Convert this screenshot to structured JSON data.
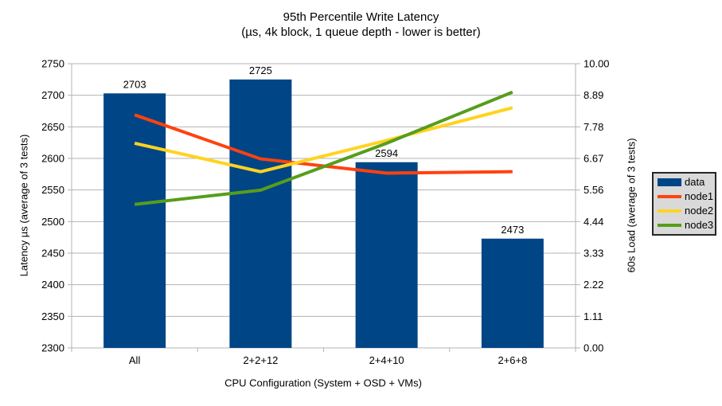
{
  "title": "95th Percentile Write Latency",
  "subtitle": "(µs, 4k block, 1 queue depth - lower is better)",
  "chart_data": {
    "type": "bar",
    "categories": [
      "All",
      "2+2+12",
      "2+4+10",
      "2+6+8"
    ],
    "bar_series": {
      "name": "data",
      "values": [
        2703,
        2725,
        2594,
        2473
      ],
      "data_labels": [
        "2703",
        "2725",
        "2594",
        "2473"
      ],
      "color": "#004586",
      "axis": "left"
    },
    "line_series": [
      {
        "name": "node1",
        "values": [
          8.2,
          6.65,
          6.15,
          6.2
        ],
        "color": "#FF420E",
        "axis": "right"
      },
      {
        "name": "node2",
        "values": [
          7.2,
          6.2,
          7.3,
          8.45
        ],
        "color": "#FFD320",
        "axis": "right"
      },
      {
        "name": "node3",
        "values": [
          5.05,
          5.55,
          7.2,
          9.0
        ],
        "color": "#579D1C",
        "axis": "right"
      }
    ],
    "left_axis": {
      "label": "Latency µs (average of 3 tests)",
      "min": 2300,
      "max": 2750,
      "step": 50
    },
    "right_axis": {
      "label": "60s Load (average of 3 tests)",
      "min": 0,
      "max": 10,
      "step": 1,
      "decimals": 2
    },
    "x_axis": {
      "label": "CPU Configuration (System + OSD + VMs)"
    },
    "grid": true,
    "legend_position": "right",
    "colors": {
      "gridline": "#b3b3b3",
      "axis_line": "#b3b3b3",
      "legend_bg": "#d9d9d9",
      "legend_border": "#262626",
      "text": "#000000",
      "background": "#ffffff"
    }
  }
}
